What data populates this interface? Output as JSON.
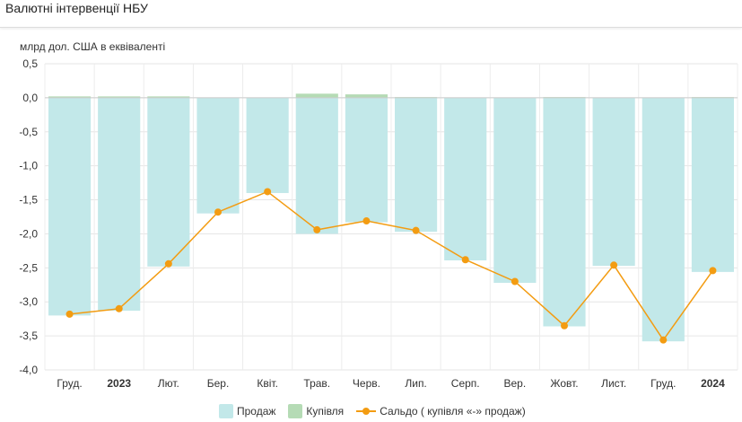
{
  "title": "Валютні інтервенції НБУ",
  "chart_data": {
    "type": "bar",
    "ylabel": "млрд дол. США в еквіваленті",
    "ylim": [
      -4.0,
      0.5
    ],
    "yticks": [
      "0,5",
      "0,0",
      "-0,5",
      "-1,0",
      "-1,5",
      "-2,0",
      "-2,5",
      "-3,0",
      "-3,5",
      "-4,0"
    ],
    "ytick_values": [
      0.5,
      0,
      -0.5,
      -1,
      -1.5,
      -2,
      -2.5,
      -3,
      -3.5,
      -4
    ],
    "categories": [
      "Груд.",
      "2023",
      "Лют.",
      "Бер.",
      "Квіт.",
      "Трав.",
      "Черв.",
      "Лип.",
      "Серп.",
      "Вер.",
      "Жовт.",
      "Лист.",
      "Груд.",
      "2024"
    ],
    "bold_categories": [
      "2023",
      "2024"
    ],
    "series": [
      {
        "name": "Продаж",
        "type": "bar",
        "color": "#c2e8e9",
        "values": [
          -3.2,
          -3.13,
          -2.48,
          -1.7,
          -1.4,
          -2.0,
          -1.83,
          -1.97,
          -2.39,
          -2.72,
          -3.36,
          -2.47,
          -3.58,
          -2.56
        ]
      },
      {
        "name": "Купівля",
        "type": "bar",
        "color": "#b5dbb5",
        "values": [
          0.02,
          0.02,
          0.02,
          0.0,
          0.0,
          0.06,
          0.05,
          0.01,
          0.0,
          0.0,
          0.01,
          0.0,
          0.0,
          0.01
        ]
      },
      {
        "name": "Сальдо ( купівля «-» продаж)",
        "type": "line",
        "color": "#f39c12",
        "values": [
          -3.18,
          -3.1,
          -2.44,
          -1.68,
          -1.38,
          -1.94,
          -1.81,
          -1.95,
          -2.38,
          -2.7,
          -3.35,
          -2.46,
          -3.56,
          -2.54
        ]
      }
    ],
    "grid": true,
    "legend": "bottom"
  }
}
